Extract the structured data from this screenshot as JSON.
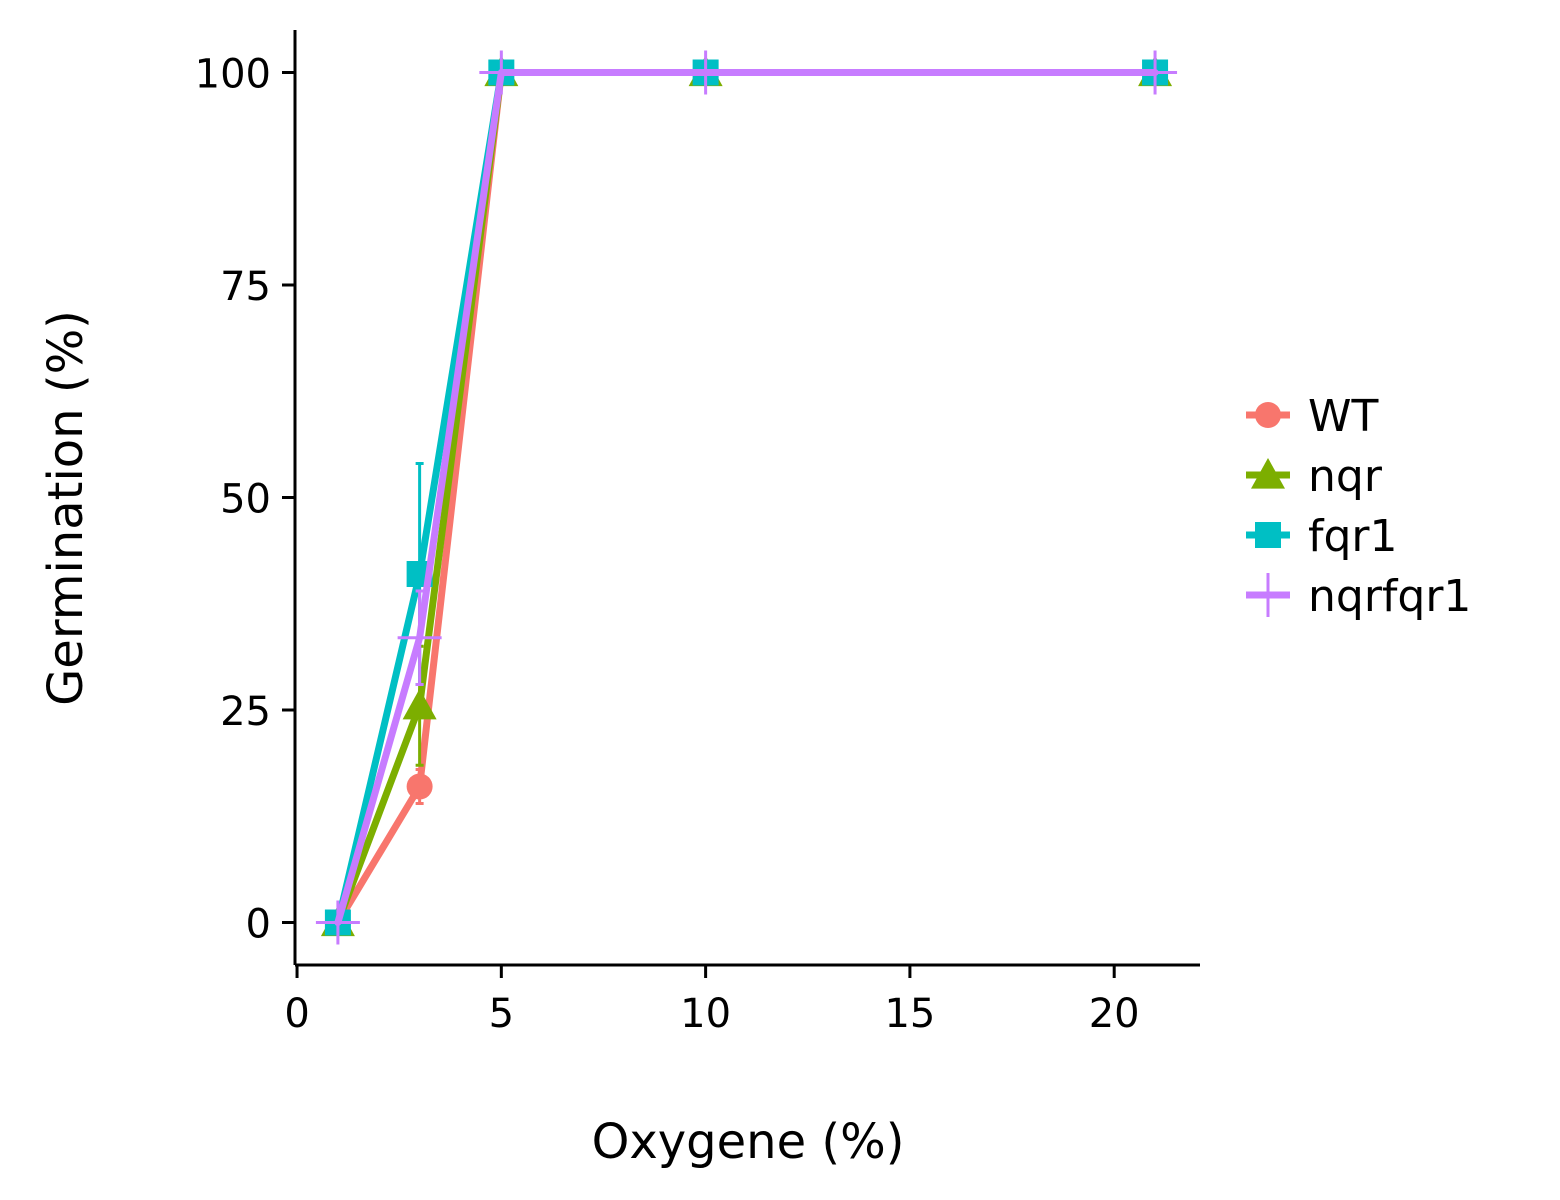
{
  "chart_data": {
    "type": "line",
    "title": "",
    "xlabel": "Oxygene (%)",
    "ylabel": "Germination (%)",
    "xlim": [
      -0.05,
      22.1
    ],
    "ylim": [
      -5,
      105
    ],
    "xticks": [
      0,
      5,
      10,
      15,
      20
    ],
    "yticks": [
      0,
      25,
      50,
      75,
      100
    ],
    "grid": false,
    "legend_position": "right",
    "x": [
      1,
      3,
      5,
      10,
      21
    ],
    "series": [
      {
        "name": "WT",
        "color": "#F8766D",
        "marker": "circle",
        "values": [
          0,
          16,
          100,
          100,
          100
        ],
        "error": [
          0,
          2,
          0,
          0,
          0
        ]
      },
      {
        "name": "nqr",
        "color": "#7CAE00",
        "marker": "triangle",
        "values": [
          0,
          25.5,
          100,
          100,
          100
        ],
        "error": [
          0,
          7,
          0,
          0,
          0
        ]
      },
      {
        "name": "fqr1",
        "color": "#00BFC4",
        "marker": "square",
        "values": [
          0,
          41,
          100,
          100,
          100
        ],
        "error": [
          0,
          13,
          0,
          0,
          0
        ]
      },
      {
        "name": "nqrfqr1",
        "color": "#C77CFF",
        "marker": "plus",
        "values": [
          0,
          33.5,
          100,
          100,
          100
        ],
        "error": [
          0,
          5.5,
          0,
          0,
          0
        ]
      }
    ]
  }
}
